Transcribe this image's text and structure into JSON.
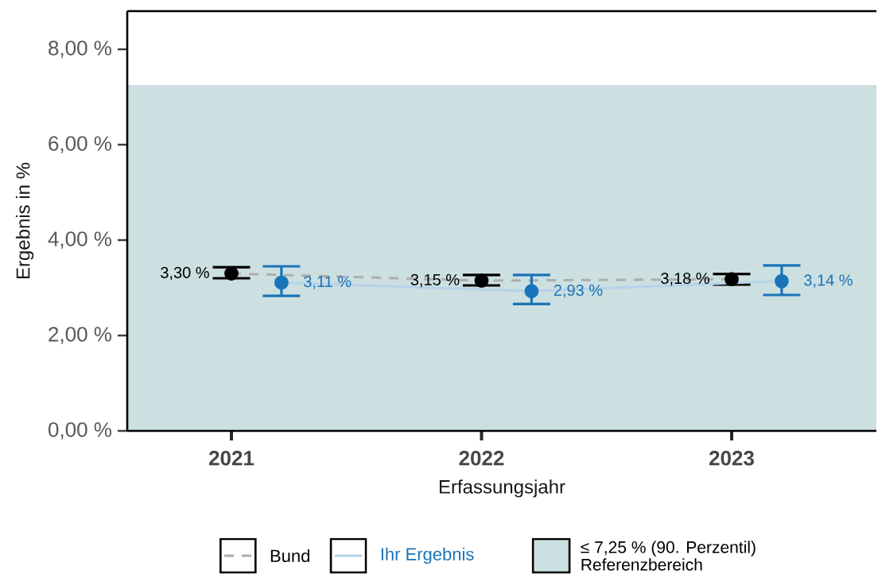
{
  "chart_data": {
    "type": "line",
    "xlabel": "Erfassungsjahr",
    "ylabel": "Ergebnis in %",
    "categories": [
      "2021",
      "2022",
      "2023"
    ],
    "series": [
      {
        "name": "Bund",
        "color": "#000000",
        "values": [
          3.3,
          3.15,
          3.18
        ],
        "errors": [
          [
            3.2,
            3.43
          ],
          [
            3.05,
            3.27
          ],
          [
            3.07,
            3.29
          ]
        ],
        "value_labels": [
          "3,30 %",
          "3,15 %",
          "3,18 %"
        ],
        "line_style": "dashed"
      },
      {
        "name": "Ihr Ergebnis",
        "color": "#1a74b9",
        "values": [
          3.11,
          2.93,
          3.14
        ],
        "errors": [
          [
            2.83,
            3.45
          ],
          [
            2.66,
            3.27
          ],
          [
            2.85,
            3.47
          ]
        ],
        "value_labels": [
          "3,11 %",
          "2,93 %",
          "3,14 %"
        ],
        "line_style": "solid"
      }
    ],
    "ylim": [
      0,
      8.8
    ],
    "yticks": [
      {
        "value": 0,
        "label": "0,00 %"
      },
      {
        "value": 2,
        "label": "2,00 %"
      },
      {
        "value": 4,
        "label": "4,00 %"
      },
      {
        "value": 6,
        "label": "6,00 %"
      },
      {
        "value": 8,
        "label": "8,00 %"
      }
    ],
    "bands": [
      {
        "axis": "y",
        "from": 0,
        "to": 7.25,
        "label": "≤ 7,25 % (90. Perzentil) Referenzbereich",
        "color": "#ccdfe1"
      }
    ],
    "marker": "circle",
    "legend": "bottom"
  }
}
